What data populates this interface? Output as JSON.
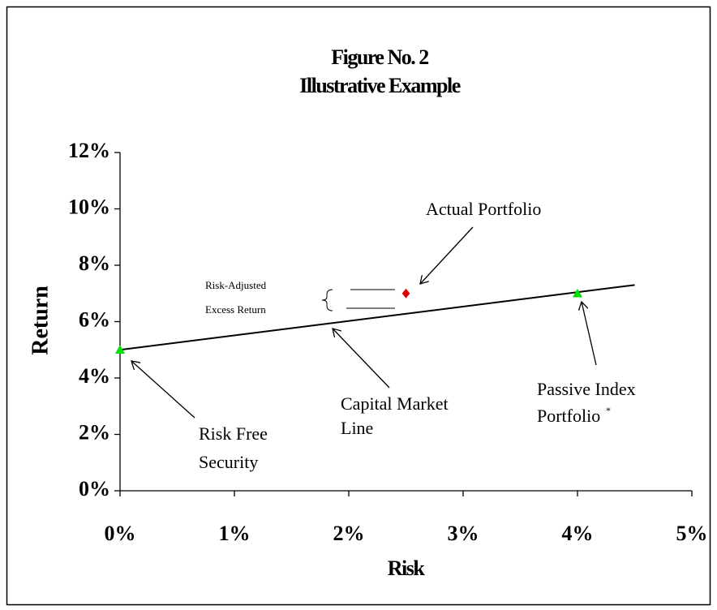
{
  "chart_data": {
    "type": "scatter",
    "title": "Figure No. 2",
    "subtitle": "Illustrative Example",
    "xlabel": "Risk",
    "ylabel": "Return",
    "xlim": [
      0,
      5
    ],
    "ylim": [
      0,
      12
    ],
    "xticks": [
      {
        "value": 0,
        "label": "0%"
      },
      {
        "value": 1,
        "label": "1%"
      },
      {
        "value": 2,
        "label": "2%"
      },
      {
        "value": 3,
        "label": "3%"
      },
      {
        "value": 4,
        "label": "4%"
      },
      {
        "value": 5,
        "label": "5%"
      }
    ],
    "yticks": [
      {
        "value": 0,
        "label": "0%"
      },
      {
        "value": 2,
        "label": "2%"
      },
      {
        "value": 4,
        "label": "4%"
      },
      {
        "value": 6,
        "label": "6%"
      },
      {
        "value": 8,
        "label": "8%"
      },
      {
        "value": 10,
        "label": "10%"
      },
      {
        "value": 12,
        "label": "12%"
      }
    ],
    "series": [
      {
        "marker": "line",
        "color": "#000000",
        "x": [
          0,
          4.5
        ],
        "values": [
          5,
          7.3
        ]
      },
      {
        "marker": "triangle",
        "color": "#00e000",
        "x": [
          0,
          4
        ],
        "values": [
          5,
          7
        ]
      },
      {
        "marker": "diamond",
        "color": "#e00000",
        "x": [
          2.5
        ],
        "values": [
          7
        ]
      }
    ],
    "annotations": [
      {
        "lines": [
          "Actual Portfolio"
        ]
      },
      {
        "lines": [
          "Risk-Adjusted",
          "Excess Return"
        ]
      },
      {
        "lines": [
          "Capital Market",
          "Line"
        ]
      },
      {
        "lines": [
          "Risk Free",
          "Security"
        ]
      },
      {
        "lines": [
          "Passive Index",
          "Portfolio"
        ],
        "mark": "*"
      }
    ]
  }
}
